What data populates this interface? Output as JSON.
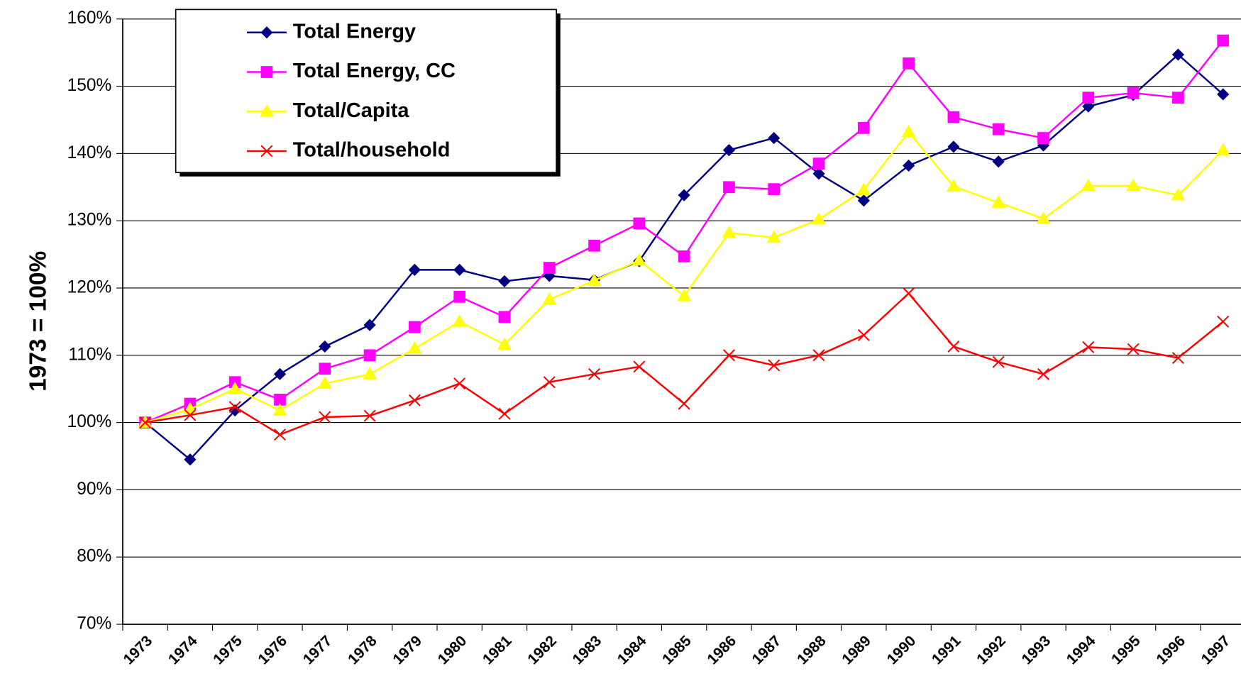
{
  "chart_data": {
    "type": "line",
    "y_label": "1973 = 100%",
    "categories": [
      "1973",
      "1974",
      "1975",
      "1976",
      "1977",
      "1978",
      "1979",
      "1980",
      "1981",
      "1982",
      "1983",
      "1984",
      "1985",
      "1986",
      "1987",
      "1988",
      "1989",
      "1990",
      "1991",
      "1992",
      "1993",
      "1994",
      "1995",
      "1996",
      "1997"
    ],
    "series": [
      {
        "name": "Total Energy",
        "color": "#000080",
        "marker": "diamond",
        "values": [
          100,
          94.5,
          101.8,
          107.2,
          111.3,
          114.5,
          122.7,
          122.7,
          121,
          121.8,
          121.2,
          124,
          133.8,
          140.5,
          142.3,
          137,
          133,
          138.2,
          141,
          138.8,
          141.2,
          147,
          148.7,
          154.7,
          148.8
        ]
      },
      {
        "name": "Total Energy, CC",
        "color": "#ff00ff",
        "marker": "square",
        "values": [
          100,
          102.8,
          106,
          103.4,
          108,
          110,
          114.2,
          118.7,
          115.7,
          123,
          126.3,
          129.6,
          124.7,
          135,
          134.7,
          138.5,
          143.8,
          153.4,
          145.4,
          143.6,
          142.3,
          148.3,
          149,
          148.3,
          156.8
        ]
      },
      {
        "name": "Total/Capita",
        "color": "#ffff00",
        "marker": "triangle",
        "values": [
          100,
          102,
          105,
          101.8,
          105.8,
          107.2,
          111,
          115,
          111.6,
          118.3,
          121.1,
          124.1,
          118.8,
          128.2,
          127.5,
          130.2,
          134.6,
          143.2,
          135.1,
          132.7,
          130.3,
          135.2,
          135.2,
          133.8,
          140.5
        ]
      },
      {
        "name": "Total/household",
        "color": "#ff0000",
        "marker": "x",
        "values": [
          100,
          101.1,
          102.3,
          98.2,
          100.8,
          101,
          103.3,
          105.8,
          101.3,
          106,
          107.2,
          108.3,
          102.8,
          110,
          108.5,
          110,
          113,
          119.2,
          111.3,
          109,
          107.2,
          111.2,
          110.9,
          109.6,
          115
        ]
      }
    ],
    "ylim": [
      70,
      160
    ],
    "yticks": [
      {
        "value": 70,
        "label": "70%"
      },
      {
        "value": 80,
        "label": "80%"
      },
      {
        "value": 90,
        "label": "90%"
      },
      {
        "value": 100,
        "label": "100%"
      },
      {
        "value": 110,
        "label": "110%"
      },
      {
        "value": 120,
        "label": "120%"
      },
      {
        "value": 130,
        "label": "130%"
      },
      {
        "value": 140,
        "label": "140%"
      },
      {
        "value": 150,
        "label": "150%"
      },
      {
        "value": 160,
        "label": "160%"
      }
    ],
    "grid": true,
    "legend": "top-left"
  }
}
